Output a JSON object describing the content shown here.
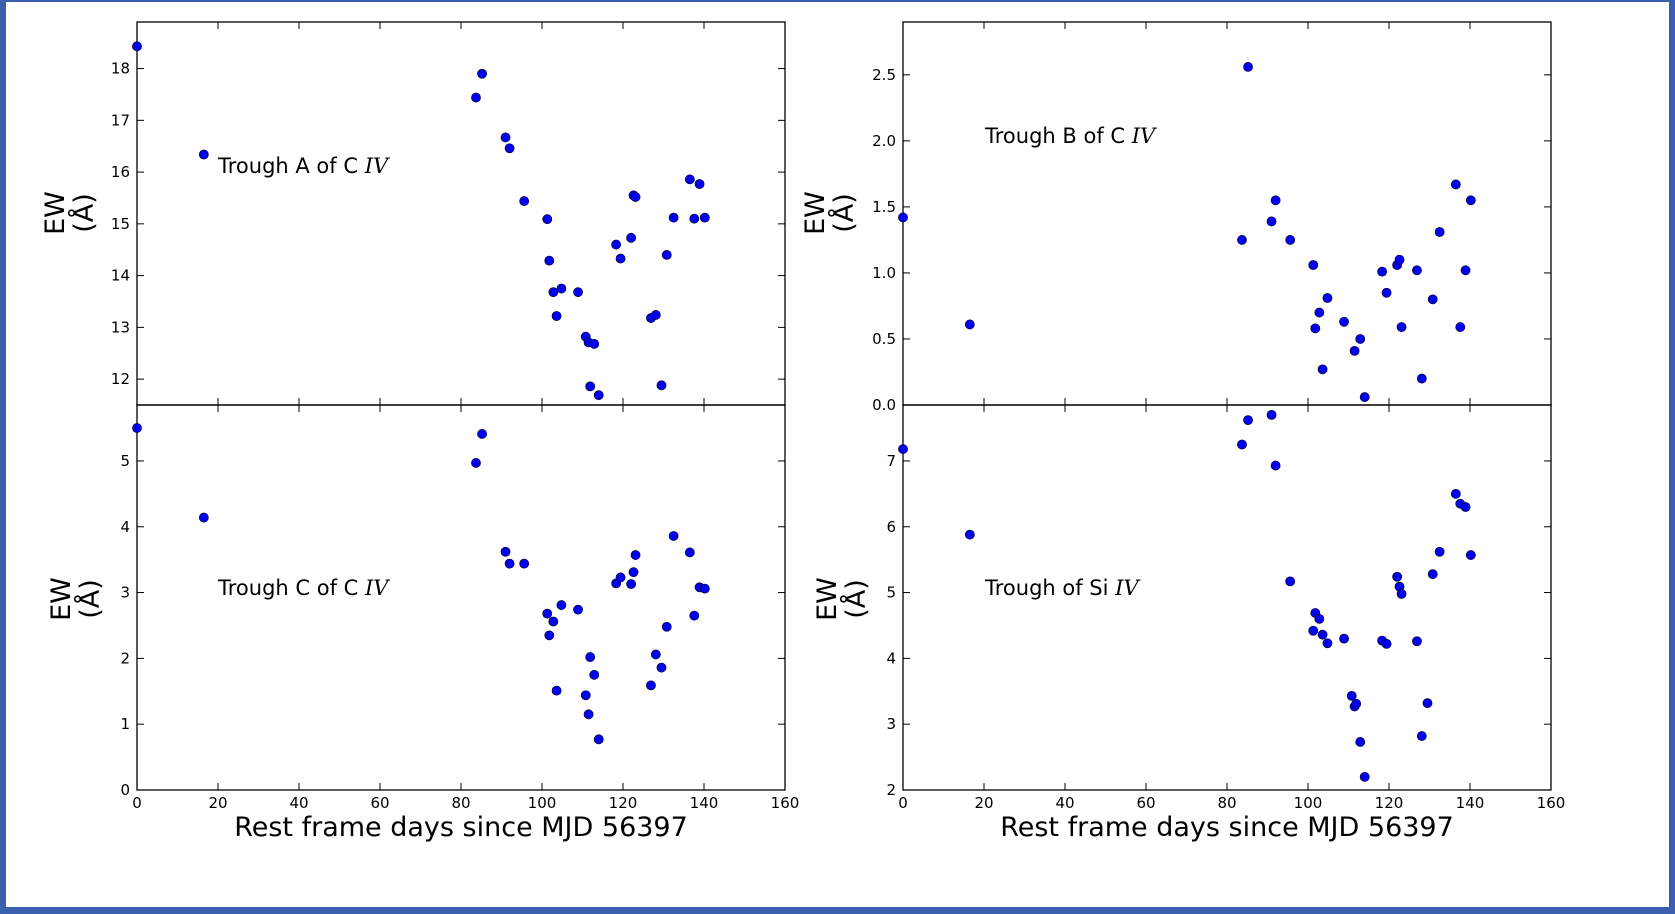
{
  "chart_data": [
    {
      "type": "scatter",
      "panel": "top-left",
      "annotation": {
        "text": "Trough A of C ",
        "italic": "IV"
      },
      "ylabel": {
        "line1": "EW",
        "line2": "(Å)"
      },
      "xlabel": "",
      "xlim": [
        0,
        160
      ],
      "ylim": [
        11.5,
        18.9
      ],
      "xticks": [
        0,
        20,
        40,
        60,
        80,
        100,
        120,
        140,
        160
      ],
      "yticks": [
        12,
        13,
        14,
        15,
        16,
        17,
        18
      ],
      "xtick_labels": false,
      "marker_color": "#0000ee",
      "points": [
        [
          0,
          18.43
        ],
        [
          16.5,
          16.34
        ],
        [
          83.7,
          17.44
        ],
        [
          85.2,
          17.9
        ],
        [
          91.0,
          16.67
        ],
        [
          92.0,
          16.46
        ],
        [
          95.6,
          15.44
        ],
        [
          101.3,
          15.09
        ],
        [
          101.8,
          14.29
        ],
        [
          102.8,
          13.68
        ],
        [
          103.6,
          13.22
        ],
        [
          104.8,
          13.75
        ],
        [
          108.9,
          13.68
        ],
        [
          110.8,
          12.82
        ],
        [
          111.5,
          12.71
        ],
        [
          111.9,
          11.86
        ],
        [
          112.9,
          12.68
        ],
        [
          114.0,
          11.69
        ],
        [
          118.3,
          14.6
        ],
        [
          119.4,
          14.33
        ],
        [
          122.0,
          14.73
        ],
        [
          122.6,
          15.55
        ],
        [
          123.1,
          15.52
        ],
        [
          126.9,
          13.18
        ],
        [
          128.1,
          13.24
        ],
        [
          129.5,
          11.88
        ],
        [
          130.8,
          14.4
        ],
        [
          132.5,
          15.12
        ],
        [
          136.5,
          15.86
        ],
        [
          137.6,
          15.1
        ],
        [
          138.9,
          15.77
        ],
        [
          140.2,
          15.12
        ]
      ]
    },
    {
      "type": "scatter",
      "panel": "top-right",
      "annotation": {
        "text": "Trough B of C ",
        "italic": "IV"
      },
      "ylabel": {
        "line1": "EW",
        "line2": "(Å)"
      },
      "xlabel": "",
      "xlim": [
        0,
        160
      ],
      "ylim": [
        0,
        2.9
      ],
      "xticks": [
        0,
        20,
        40,
        60,
        80,
        100,
        120,
        140,
        160
      ],
      "yticks": [
        0.0,
        0.5,
        1.0,
        1.5,
        2.0,
        2.5
      ],
      "xtick_labels": false,
      "marker_color": "#0000ee",
      "points": [
        [
          0,
          1.42
        ],
        [
          16.5,
          0.61
        ],
        [
          83.7,
          1.25
        ],
        [
          85.2,
          2.56
        ],
        [
          91.0,
          1.39
        ],
        [
          92.0,
          1.55
        ],
        [
          95.6,
          1.25
        ],
        [
          101.3,
          1.06
        ],
        [
          101.8,
          0.58
        ],
        [
          102.8,
          0.7
        ],
        [
          103.6,
          0.27
        ],
        [
          104.8,
          0.81
        ],
        [
          108.9,
          0.63
        ],
        [
          111.5,
          0.41
        ],
        [
          112.9,
          0.5
        ],
        [
          114.0,
          0.06
        ],
        [
          118.3,
          1.01
        ],
        [
          119.4,
          0.85
        ],
        [
          122.0,
          1.06
        ],
        [
          122.6,
          1.1
        ],
        [
          123.1,
          0.59
        ],
        [
          126.9,
          1.02
        ],
        [
          128.1,
          0.2
        ],
        [
          130.8,
          0.8
        ],
        [
          132.5,
          1.31
        ],
        [
          136.5,
          1.67
        ],
        [
          137.6,
          0.59
        ],
        [
          138.9,
          1.02
        ],
        [
          140.2,
          1.55
        ]
      ]
    },
    {
      "type": "scatter",
      "panel": "bottom-left",
      "annotation": {
        "text": "Trough C of C ",
        "italic": "IV"
      },
      "ylabel": {
        "line1": "EW",
        "line2": "(Å)"
      },
      "xlabel": "Rest frame days since MJD 56397",
      "xlim": [
        0,
        160
      ],
      "ylim": [
        0,
        5.85
      ],
      "xticks": [
        0,
        20,
        40,
        60,
        80,
        100,
        120,
        140,
        160
      ],
      "yticks": [
        0,
        1,
        2,
        3,
        4,
        5
      ],
      "xtick_labels": true,
      "marker_color": "#0000ee",
      "points": [
        [
          0,
          5.5
        ],
        [
          16.5,
          4.14
        ],
        [
          83.7,
          4.97
        ],
        [
          85.2,
          5.41
        ],
        [
          91.0,
          3.62
        ],
        [
          92.0,
          3.44
        ],
        [
          95.6,
          3.44
        ],
        [
          101.3,
          2.68
        ],
        [
          101.8,
          2.35
        ],
        [
          102.8,
          2.56
        ],
        [
          103.6,
          1.51
        ],
        [
          104.8,
          2.81
        ],
        [
          108.9,
          2.74
        ],
        [
          110.8,
          1.44
        ],
        [
          111.5,
          1.15
        ],
        [
          111.9,
          2.02
        ],
        [
          112.9,
          1.75
        ],
        [
          114.0,
          0.77
        ],
        [
          118.3,
          3.14
        ],
        [
          119.4,
          3.23
        ],
        [
          122.0,
          3.13
        ],
        [
          122.6,
          3.31
        ],
        [
          123.1,
          3.57
        ],
        [
          126.9,
          1.59
        ],
        [
          128.1,
          2.06
        ],
        [
          129.5,
          1.86
        ],
        [
          130.8,
          2.48
        ],
        [
          132.5,
          3.86
        ],
        [
          136.5,
          3.61
        ],
        [
          137.6,
          2.65
        ],
        [
          138.9,
          3.08
        ],
        [
          140.2,
          3.06
        ]
      ]
    },
    {
      "type": "scatter",
      "panel": "bottom-right",
      "annotation": {
        "text": "Trough of Si ",
        "italic": "IV"
      },
      "ylabel": {
        "line1": "EW",
        "line2": "(Å)"
      },
      "xlabel": "Rest frame days since MJD 56397",
      "xlim": [
        0,
        160
      ],
      "ylim": [
        2,
        7.85
      ],
      "xticks": [
        0,
        20,
        40,
        60,
        80,
        100,
        120,
        140,
        160
      ],
      "yticks": [
        2,
        3,
        4,
        5,
        6,
        7
      ],
      "xtick_labels": true,
      "marker_color": "#0000ee",
      "points": [
        [
          0,
          7.18
        ],
        [
          16.5,
          5.88
        ],
        [
          83.7,
          7.25
        ],
        [
          85.2,
          7.62
        ],
        [
          91.0,
          7.7
        ],
        [
          92.0,
          6.93
        ],
        [
          95.6,
          5.17
        ],
        [
          101.3,
          4.42
        ],
        [
          101.8,
          4.69
        ],
        [
          102.8,
          4.6
        ],
        [
          103.6,
          4.36
        ],
        [
          104.8,
          4.23
        ],
        [
          108.9,
          4.3
        ],
        [
          110.8,
          3.43
        ],
        [
          111.5,
          3.27
        ],
        [
          111.9,
          3.31
        ],
        [
          112.9,
          2.73
        ],
        [
          114.0,
          2.2
        ],
        [
          118.3,
          4.27
        ],
        [
          119.4,
          4.22
        ],
        [
          122.0,
          5.24
        ],
        [
          122.6,
          5.09
        ],
        [
          123.1,
          4.98
        ],
        [
          126.9,
          4.26
        ],
        [
          128.1,
          2.82
        ],
        [
          129.5,
          3.32
        ],
        [
          130.8,
          5.28
        ],
        [
          132.5,
          5.62
        ],
        [
          136.5,
          6.5
        ],
        [
          137.6,
          6.35
        ],
        [
          138.9,
          6.3
        ],
        [
          140.2,
          5.57
        ]
      ]
    }
  ]
}
